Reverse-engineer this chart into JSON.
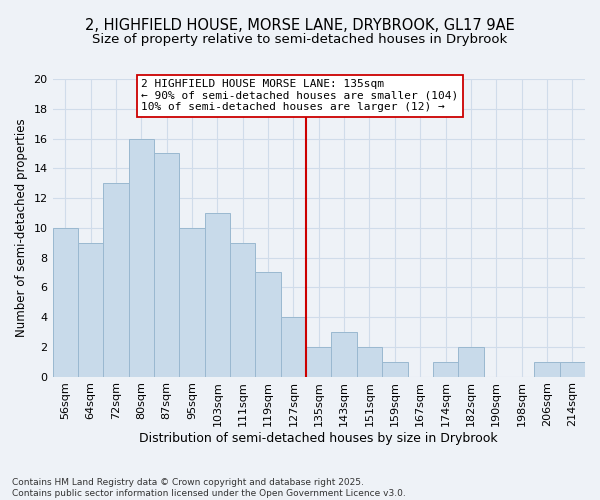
{
  "title": "2, HIGHFIELD HOUSE, MORSE LANE, DRYBROOK, GL17 9AE",
  "subtitle": "Size of property relative to semi-detached houses in Drybrook",
  "xlabel": "Distribution of semi-detached houses by size in Drybrook",
  "ylabel": "Number of semi-detached properties",
  "categories": [
    "56sqm",
    "64sqm",
    "72sqm",
    "80sqm",
    "87sqm",
    "95sqm",
    "103sqm",
    "111sqm",
    "119sqm",
    "127sqm",
    "135sqm",
    "143sqm",
    "151sqm",
    "159sqm",
    "167sqm",
    "174sqm",
    "182sqm",
    "190sqm",
    "198sqm",
    "206sqm",
    "214sqm"
  ],
  "values": [
    10,
    9,
    13,
    16,
    15,
    10,
    11,
    9,
    7,
    4,
    2,
    3,
    2,
    1,
    0,
    1,
    2,
    0,
    0,
    1,
    1
  ],
  "bar_color": "#c8daea",
  "bar_edge_color": "#9ab8d0",
  "vline_index": 10,
  "vline_color": "#cc0000",
  "annotation_text": "2 HIGHFIELD HOUSE MORSE LANE: 135sqm\n← 90% of semi-detached houses are smaller (104)\n10% of semi-detached houses are larger (12) →",
  "annotation_box_color": "#ffffff",
  "annotation_box_edge": "#cc0000",
  "ylim": [
    0,
    20
  ],
  "yticks": [
    0,
    2,
    4,
    6,
    8,
    10,
    12,
    14,
    16,
    18,
    20
  ],
  "footnote": "Contains HM Land Registry data © Crown copyright and database right 2025.\nContains public sector information licensed under the Open Government Licence v3.0.",
  "background_color": "#eef2f7",
  "grid_color": "#d0dcea",
  "title_fontsize": 10.5,
  "subtitle_fontsize": 9.5,
  "xlabel_fontsize": 9,
  "ylabel_fontsize": 8.5,
  "tick_fontsize": 8,
  "annotation_fontsize": 8,
  "footnote_fontsize": 6.5
}
